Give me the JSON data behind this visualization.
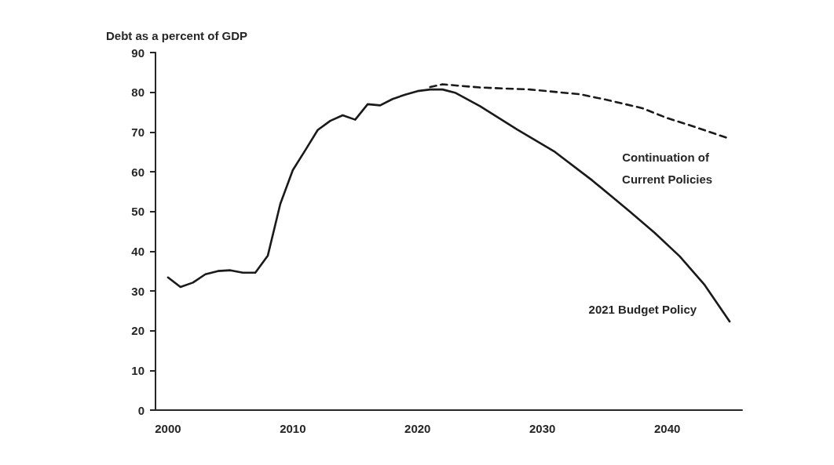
{
  "chart_data": {
    "type": "line",
    "ylabel": "Debt as a percent of GDP",
    "xlim": [
      1999,
      2046
    ],
    "xticks": [
      2000,
      2010,
      2020,
      2030,
      2040
    ],
    "ylim": [
      0,
      90
    ],
    "yticks": [
      0,
      10,
      20,
      30,
      40,
      50,
      60,
      70,
      80,
      90
    ],
    "grid": false,
    "legend": false,
    "marker": "none",
    "series": [
      {
        "name": "2021 Budget Policy",
        "color": "#1a1a1a",
        "line_style": "solid",
        "x": [
          2000,
          2001,
          2002,
          2003,
          2004,
          2005,
          2006,
          2007,
          2008,
          2009,
          2010,
          2011,
          2012,
          2013,
          2014,
          2015,
          2016,
          2017,
          2018,
          2019,
          2020,
          2021,
          2022,
          2023,
          2025,
          2028,
          2031,
          2034,
          2037,
          2039,
          2041,
          2043,
          2045
        ],
        "values": [
          33.4,
          31.0,
          32.1,
          34.2,
          35.0,
          35.2,
          34.6,
          34.6,
          38.9,
          51.9,
          60.4,
          65.4,
          70.5,
          72.8,
          74.2,
          73.1,
          77.0,
          76.7,
          78.3,
          79.4,
          80.3,
          80.7,
          80.7,
          79.9,
          76.5,
          70.6,
          65.0,
          57.8,
          50.0,
          44.6,
          38.7,
          31.5,
          22.3
        ]
      },
      {
        "name": "Continuation of Current Policies",
        "color": "#1a1a1a",
        "line_style": "dashed",
        "x": [
          2021,
          2022,
          2025,
          2029,
          2033,
          2035,
          2038,
          2040,
          2042,
          2045
        ],
        "values": [
          81.3,
          82.0,
          81.2,
          80.7,
          79.5,
          78.2,
          76.0,
          73.5,
          71.5,
          68.3
        ]
      }
    ]
  }
}
